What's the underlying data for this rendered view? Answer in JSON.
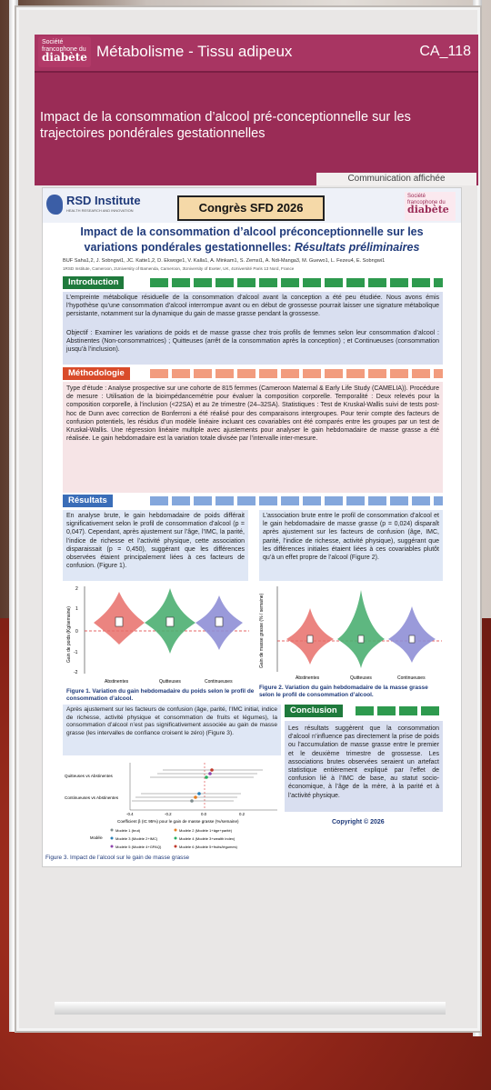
{
  "header": {
    "logo_text_small": "Société francophone du",
    "logo_text_big": "diabète",
    "theme": "Métabolisme - Tissu adipeux",
    "code": "CA_118",
    "title": "Impact de la consommation d’alcool pré-conceptionnelle sur les trajectoires pondérales gestationnelles",
    "type_label": "Communication affichée"
  },
  "poster": {
    "institute_name": "RSD Institute",
    "institute_tagline": "HEALTH RESEARCH AND INNOVATION",
    "congress": "Congrès SFD 2026",
    "title_line1": "Impact de la consommation d’alcool préconceptionnelle sur les",
    "title_line2": "variations pondérales gestationnelles:",
    "title_subtitle": "Résultats préliminaires",
    "authors": "BUF Saha1,2, J. Sobngwi1, JC. Katte1,2, D. Ekwoge1, V. Kalla1, A. Minkam1, S. Zemsi1, A. Ndi-Manga3, M. Guewo1, L. Fezeu4, E. Sobngwi1",
    "affiliations": "1RSD Institute, Cameroon, 2University of Bamenda, Cameroon, 3University of Exeter, UK, 4Université Paris 13 Nord, France",
    "sections": {
      "intro": "Introduction",
      "methods": "Méthodologie",
      "results": "Résultats",
      "conclusion": "Conclusion"
    },
    "intro_text": "L’empreinte métabolique résiduelle de la consommation d’alcool avant la conception a été peu étudiée. Nous avons émis l’hypothèse qu’une consommation d’alcool interrompue avant ou en début de grossesse pourrait laisser une signature métabolique persistante, notamment sur la dynamique du gain de masse grasse pendant la grossesse.",
    "objective_text": "Objectif : Examiner les variations de poids et de masse grasse chez trois profils de femmes selon leur consommation d’alcool : Abstinentes (Non-consommatrices) ; Quitteuses (arrêt de la consommation après la conception) ; et Continueuses (consommation jusqu’à l’inclusion).",
    "methods_text": "Type d’étude : Analyse prospective sur une cohorte de 815 femmes (Cameroon Maternal & Early Life Study (CAMELIA)). Procédure de mesure : Utilisation de la bioimpédancemétrie pour évaluer la composition corporelle. Temporalité : Deux relevés pour la composition corporelle, à l’inclusion (<22SA) et au 2e trimestre (24–32SA). Statistiques : Test de Kruskal-Wallis suivi de tests post-hoc de Dunn avec correction de Bonferroni a été réalisé pour des comparaisons intergroupes. Pour tenir compte des facteurs de confusion potentiels, les résidus d’un modèle linéaire incluant ces covariables ont été comparés entre les groupes par un test de Kruskal-Wallis. Une régression linéaire multiple avec ajustements pour analyser le gain hebdomadaire de masse grasse a été réalisée. Le gain hebdomadaire est la variation totale divisée par l’intervalle inter-mesure.",
    "results_left": "En analyse brute, le gain hebdomadaire de poids différait significativement selon le profil de consommation d’alcool (p = 0,047). Cependant, après ajustement sur l’âge, l’IMC, la parité, l’indice de richesse et l’activité physique, cette association disparaissait (p = 0,450), suggérant que les différences observées étaient principalement liées à ces facteurs de confusion. (Figure 1).",
    "results_right": "L’association brute entre le profil de consommation d’alcool et le gain hebdomadaire de masse grasse (p = 0,024) disparaît après ajustement sur les facteurs de confusion (âge, IMC, parité, l’indice de richesse, activité physique), suggérant que les différences initiales étaient liées à ces covariables plutôt qu’à un effet propre de l’alcool (Figure 2).",
    "fig1_caption": "Figure 1. Variation du gain hebdomadaire du poids selon le profil de consommation d’alcool.",
    "fig2_caption": "Figure 2. Variation du gain hebdomadaire de la masse grasse selon le profil de consommation d’alcool.",
    "fig1_ylabel": "Gain de poids (Kg/semaine)",
    "fig2_ylabel": "Gain de masse grasse (% / semaine)",
    "groups": [
      "Abstinentes",
      "Quitteuses",
      "Continueuses"
    ],
    "results_adjusted": "Après ajustement sur les facteurs de confusion (âge, parité, l’IMC initial, indice de richesse, activité physique et consommation de fruits et légumes), la consommation d’alcool n’est pas significativement associée au gain de masse grasse (les intervalles de confiance croisent le zéro) (Figure 3).",
    "fig3_rows": [
      "Quitteuses vs Abstinentes",
      "Continueuses vs Abstinentes"
    ],
    "fig3_xlabel": "Coefficient β (IC 95%) pour le gain de masse grasse (%/semaine)",
    "fig3_ticks": [
      "-0.4",
      "-0.2",
      "0.0",
      "0.2"
    ],
    "fig3_legend_title": "Modèle",
    "fig3_legend": [
      "Modèle 1 (brut)",
      "Modèle 2 (Modèle 1+âge+parité)",
      "Modèle 3 (Modèle 2+IMC)",
      "Modèle 4 (Modèle 3+wealth index)",
      "Modèle 5 (Modèle 4+GPAQ)",
      "Modèle 6 (Modèle 5+fruits/légumes)"
    ],
    "fig3_caption": "Figure 3. Impact de l’alcool sur le gain de masse grasse",
    "conclusion_text": "Les résultats suggèrent que la consommation d’alcool n’influence pas directement la prise de poids ou l’accumulation de masse grasse entre le premier et le deuxième trimestre de grossesse. Les associations brutes observées seraient un artefact statistique entièrement expliqué par l’effet de confusion lié à l’IMC de base, au statut socio-économique, à l’âge de la mère, à la parité et à l’activité physique.",
    "copyright": "Copyright © 2026"
  },
  "colors": {
    "header_bg": "#9a2c56",
    "poster_blue": "#1f3a7a",
    "green": "#1f7a3c",
    "orange": "#d94b2a",
    "blue": "#3a6db8",
    "violin_red": "#e76f6a",
    "violin_green": "#4caf72",
    "violin_purple": "#8f8fd6"
  }
}
